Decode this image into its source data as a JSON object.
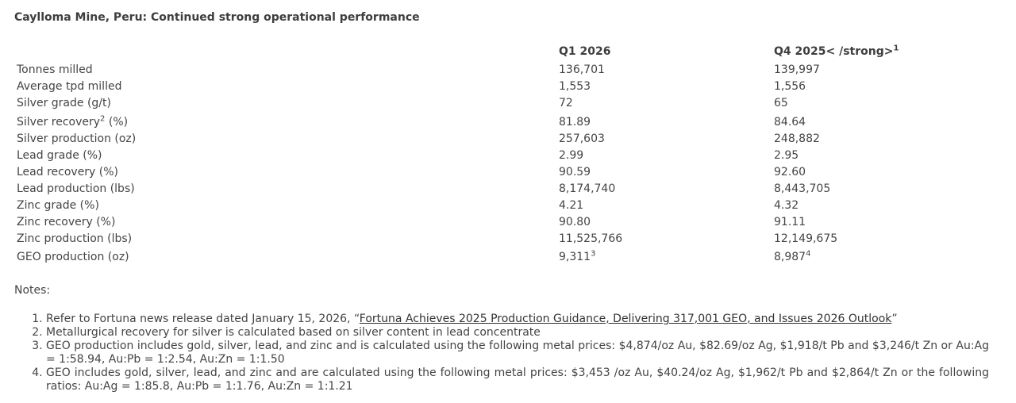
{
  "title": "Caylloma Mine, Peru: Continued strong operational performance",
  "table": {
    "headers": {
      "q1": "Q1 2026",
      "q4": "Q4 2025< /strong>",
      "q4_sup": "1"
    },
    "rows": [
      {
        "label": "Tonnes milled",
        "label_sup": "",
        "label_suffix": "",
        "q1": "136,701",
        "q1_sup": "",
        "q4": "139,997",
        "q4_sup": ""
      },
      {
        "label": "Average tpd milled",
        "label_sup": "",
        "label_suffix": "",
        "q1": "1,553",
        "q1_sup": "",
        "q4": "1,556",
        "q4_sup": ""
      },
      {
        "label": "Silver grade (g/t)",
        "label_sup": "",
        "label_suffix": "",
        "q1": "72",
        "q1_sup": "",
        "q4": "65",
        "q4_sup": ""
      },
      {
        "label": "Silver recovery",
        "label_sup": "2",
        "label_suffix": " (%)",
        "q1": "81.89",
        "q1_sup": "",
        "q4": "84.64",
        "q4_sup": ""
      },
      {
        "label": "Silver production (oz)",
        "label_sup": "",
        "label_suffix": "",
        "q1": "257,603",
        "q1_sup": "",
        "q4": "248,882",
        "q4_sup": ""
      },
      {
        "label": "Lead grade (%)",
        "label_sup": "",
        "label_suffix": "",
        "q1": "2.99",
        "q1_sup": "",
        "q4": "2.95",
        "q4_sup": ""
      },
      {
        "label": "Lead recovery (%)",
        "label_sup": "",
        "label_suffix": "",
        "q1": "90.59",
        "q1_sup": "",
        "q4": "92.60",
        "q4_sup": ""
      },
      {
        "label": "Lead production (lbs)",
        "label_sup": "",
        "label_suffix": "",
        "q1": "8,174,740",
        "q1_sup": "",
        "q4": "8,443,705",
        "q4_sup": ""
      },
      {
        "label": "Zinc grade (%)",
        "label_sup": "",
        "label_suffix": "",
        "q1": "4.21",
        "q1_sup": "",
        "q4": "4.32",
        "q4_sup": ""
      },
      {
        "label": "Zinc recovery (%)",
        "label_sup": "",
        "label_suffix": "",
        "q1": "90.80",
        "q1_sup": "",
        "q4": "91.11",
        "q4_sup": ""
      },
      {
        "label": "Zinc production (lbs)",
        "label_sup": "",
        "label_suffix": "",
        "q1": "11,525,766",
        "q1_sup": "",
        "q4": "12,149,675",
        "q4_sup": ""
      },
      {
        "label": "GEO production (oz)",
        "label_sup": "",
        "label_suffix": "",
        "q1": "9,311",
        "q1_sup": "3",
        "q4": "8,987",
        "q4_sup": "4"
      }
    ]
  },
  "notes": {
    "heading": "Notes:",
    "items": [
      {
        "pre": "Refer to Fortuna news release dated January 15, 2026, “",
        "link": "Fortuna Achieves 2025 Production Guidance, Delivering 317,001 GEO, and Issues 2026 Outlook",
        "post": "”"
      },
      {
        "pre": "Metallurgical recovery for silver is calculated based on silver content in lead concentrate",
        "link": "",
        "post": ""
      },
      {
        "pre": "GEO production includes gold, silver, lead, and zinc and is calculated using the following metal prices: $4,874/oz Au, $82.69/oz Ag, $1,918/t Pb and $3,246/t Zn or Au:Ag = 1:58.94, Au:Pb = 1:2.54, Au:Zn = 1:1.50",
        "link": "",
        "post": ""
      },
      {
        "pre": "GEO includes gold, silver, lead, and zinc and are calculated using the following metal prices: $3,453 /oz Au, $40.24/oz Ag, $1,962/t Pb and $2,864/t Zn or the following ratios: Au:Ag = 1:85.8, Au:Pb = 1:1.76, Au:Zn = 1:1.21",
        "link": "",
        "post": ""
      }
    ]
  }
}
